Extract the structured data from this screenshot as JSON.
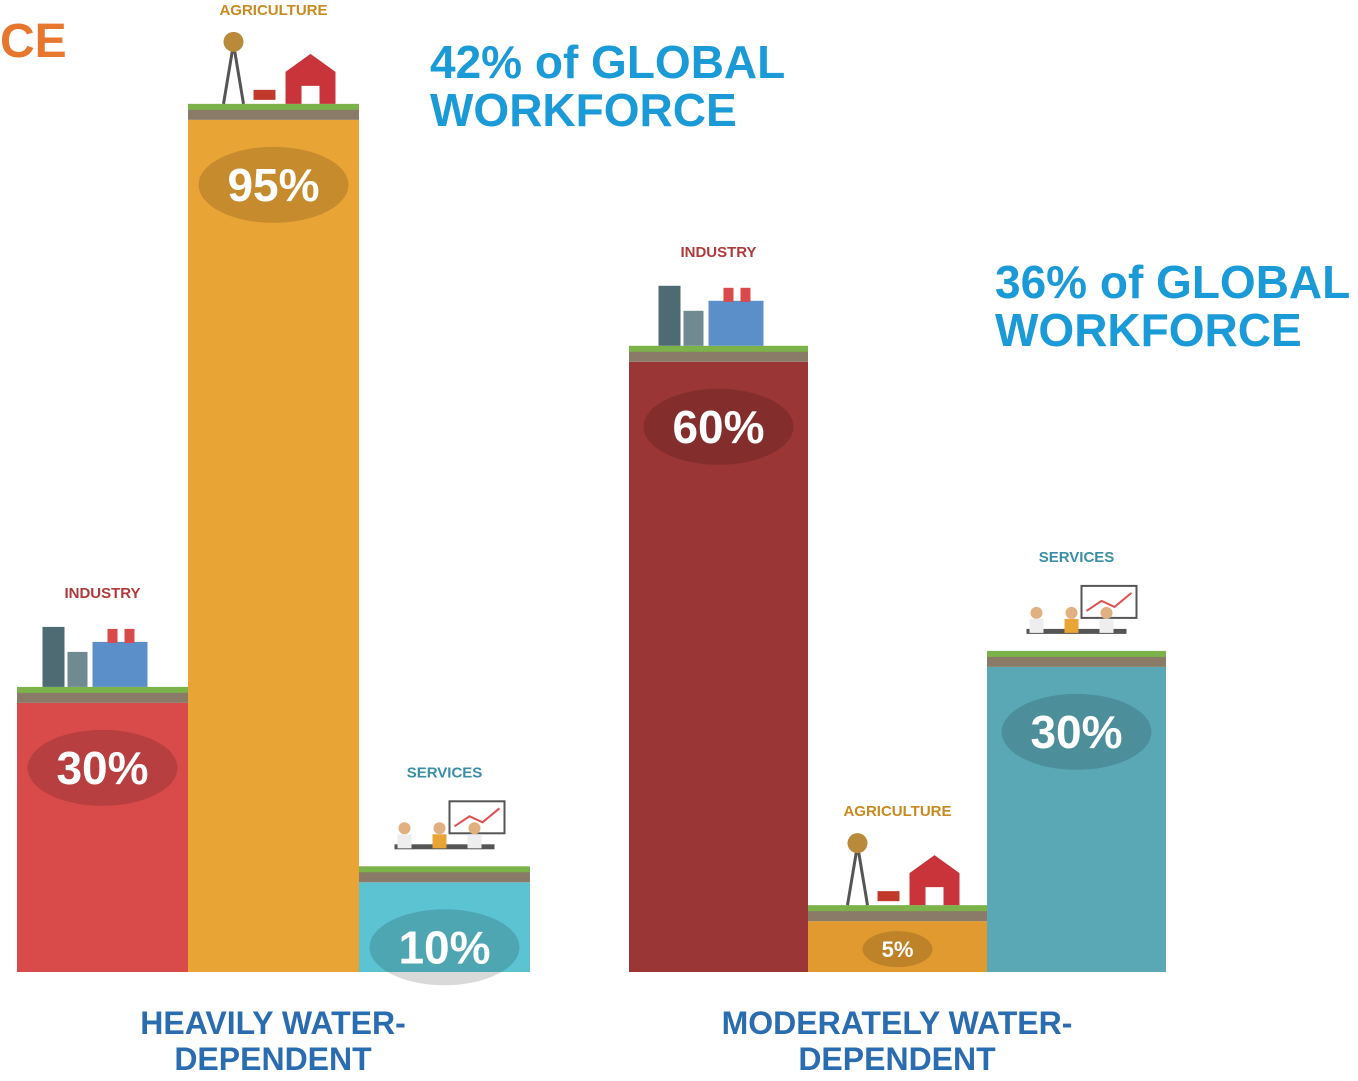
{
  "title": "CE",
  "chart_data": [
    {
      "type": "bar",
      "note": "42% of GLOBAL WORKFORCE",
      "x_label": "HEAVILY WATER-DEPENDENT",
      "categories": [
        "INDUSTRY",
        "AGRICULTURE",
        "SERVICES"
      ],
      "values": [
        30,
        95,
        10
      ],
      "value_labels": [
        "30%",
        "95%",
        "10%"
      ],
      "colors": [
        "#d94a4a",
        "#e8a435",
        "#5cc3d3"
      ]
    },
    {
      "type": "bar",
      "note": "36% of GLOBAL WORKFORCE",
      "x_label": "MODERATELY WATER-DEPENDENT",
      "categories": [
        "INDUSTRY",
        "AGRICULTURE",
        "SERVICES"
      ],
      "values": [
        60,
        5,
        30
      ],
      "value_labels": [
        "60%",
        "5%",
        "30%"
      ],
      "colors": [
        "#9a3636",
        "#e09a30",
        "#5aa8b6"
      ]
    }
  ]
}
